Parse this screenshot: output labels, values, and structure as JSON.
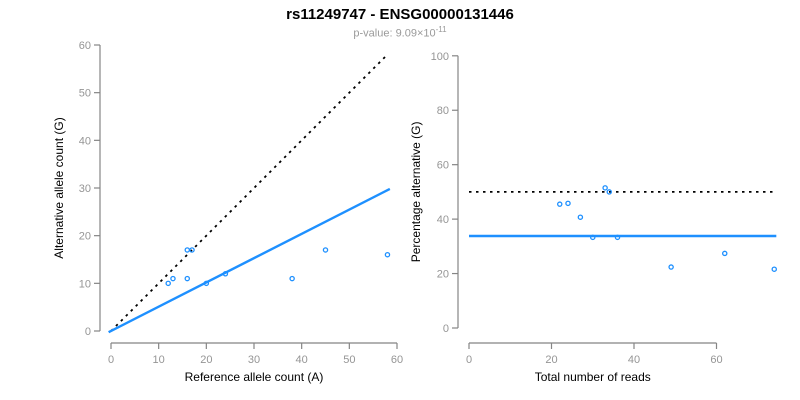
{
  "header": {
    "title": "rs11249747 - ENSG00000131446",
    "subtitle_prefix": "p-value: 9.09×10",
    "subtitle_exponent": "-11"
  },
  "colors": {
    "accent_blue": "#1E90FF",
    "dotted_line": "#000000",
    "axis_line": "#858585",
    "tick_label": "#959595",
    "axis_title": "#000000",
    "subtitle_gray": "#9a9a9a",
    "background": "#ffffff"
  },
  "chart_data": [
    {
      "type": "scatter",
      "name": "allele-counts",
      "title": "rs11249747 - ENSG00000131446",
      "xlabel": "Reference allele count (A)",
      "ylabel": "Alternative allele count (G)",
      "xlim": [
        0,
        62
      ],
      "ylim": [
        0,
        62
      ],
      "xticks": [
        0,
        10,
        20,
        30,
        40,
        50,
        60
      ],
      "yticks": [
        0,
        10,
        20,
        30,
        40,
        50,
        60
      ],
      "grid": false,
      "legend": null,
      "points": [
        [
          12,
          10
        ],
        [
          13,
          11
        ],
        [
          16,
          11
        ],
        [
          16,
          17
        ],
        [
          17,
          17
        ],
        [
          20,
          10
        ],
        [
          24,
          12
        ],
        [
          38,
          11
        ],
        [
          45,
          17
        ],
        [
          58,
          16
        ]
      ],
      "lines": [
        {
          "name": "fifty-percent-diagonal",
          "style": "dotted",
          "color": "#000000",
          "x": [
            0,
            58
          ],
          "y": [
            0,
            58
          ]
        },
        {
          "name": "overall-allelic-ratio",
          "style": "solid",
          "color": "#1E90FF",
          "x": [
            -0.5,
            58.5
          ],
          "y": [
            -0.25,
            29.8
          ]
        }
      ]
    },
    {
      "type": "scatter",
      "name": "percentage-vs-coverage",
      "title": "rs11249747 - ENSG00000131446",
      "xlabel": "Total number of reads",
      "ylabel": "Percentage alternative (G)",
      "xlim": [
        0,
        75
      ],
      "ylim": [
        0,
        100
      ],
      "xticks": [
        0,
        20,
        40,
        60
      ],
      "yticks": [
        0,
        20,
        40,
        60,
        80,
        100
      ],
      "grid": false,
      "legend": null,
      "points": [
        [
          22,
          45.5
        ],
        [
          24,
          45.8
        ],
        [
          27,
          40.7
        ],
        [
          33,
          51.5
        ],
        [
          34,
          50.0
        ],
        [
          30,
          33.3
        ],
        [
          36,
          33.3
        ],
        [
          49,
          22.4
        ],
        [
          62,
          27.4
        ],
        [
          74,
          21.6
        ]
      ],
      "lines": [
        {
          "name": "fifty-percent-level",
          "style": "dotted",
          "color": "#000000",
          "x": [
            0,
            74.5
          ],
          "y": [
            50,
            50
          ]
        },
        {
          "name": "overall-percentage-level",
          "style": "solid",
          "color": "#1E90FF",
          "x": [
            0,
            74.5
          ],
          "y": [
            33.8,
            33.8
          ]
        }
      ]
    }
  ]
}
